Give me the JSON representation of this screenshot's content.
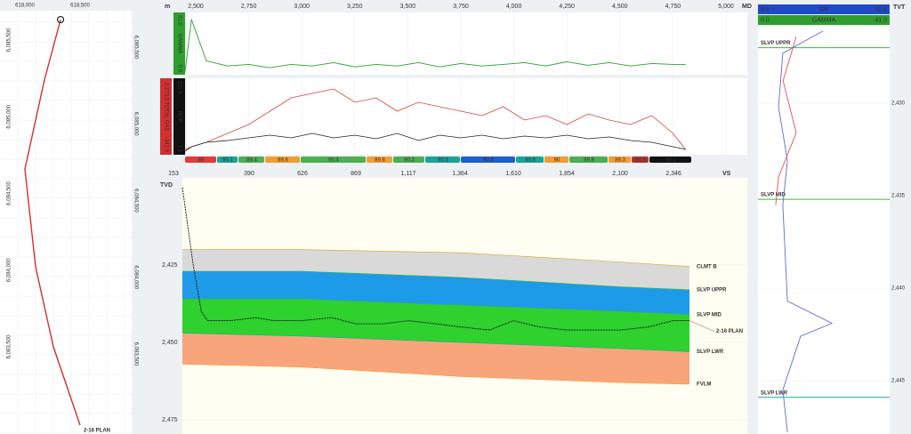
{
  "map": {
    "x_ticks": [
      {
        "value": 618000,
        "label": "618,000"
      },
      {
        "value": 618500,
        "label": "618,500"
      }
    ],
    "y_ticks": [
      {
        "value": 6085500,
        "label": "6,085,500"
      },
      {
        "value": 6085000,
        "label": "6,085,000"
      },
      {
        "value": 6084500,
        "label": "6,084,500"
      },
      {
        "value": 6084000,
        "label": "6,084,000"
      },
      {
        "value": 6083500,
        "label": "6,083,500"
      }
    ],
    "well": {
      "name": "2-16 PLAN",
      "easting": [
        618323,
        618177,
        618000,
        618097,
        618258,
        618500
      ],
      "northing": [
        6085633,
        6085239,
        6084659,
        6084022,
        6083500,
        6082990
      ]
    }
  },
  "md_axis": {
    "unit": "m",
    "name": "MD",
    "ticks": [
      {
        "value": 2500,
        "label": "2,500"
      },
      {
        "value": 2750,
        "label": "2,750"
      },
      {
        "value": 3000,
        "label": "3,000"
      },
      {
        "value": 3250,
        "label": "3,250"
      },
      {
        "value": 3500,
        "label": "3,500"
      },
      {
        "value": 3750,
        "label": "3,750"
      },
      {
        "value": 4000,
        "label": "4,000"
      },
      {
        "value": 4250,
        "label": "4,250"
      },
      {
        "value": 4500,
        "label": "4,500"
      },
      {
        "value": 4750,
        "label": "4,750"
      },
      {
        "value": 5000,
        "label": "5,000"
      }
    ]
  },
  "logs": {
    "md": [
      2450,
      2480,
      2550,
      2650,
      2750,
      2850,
      2950,
      3050,
      3150,
      3250,
      3350,
      3450,
      3550,
      3650,
      3750,
      3850,
      3950,
      4050,
      4150,
      4250,
      4350,
      4450,
      4550,
      4650,
      4750,
      4810
    ],
    "gamma": {
      "name": "GAMMA",
      "max": {
        "value": 41,
        "label": "41.0"
      },
      "min": {
        "value": 0,
        "label": "0.0"
      },
      "color": "#2e9e2e",
      "values": [
        2.3,
        37.5,
        9.4,
        5.9,
        7.0,
        4.7,
        7.0,
        5.9,
        8.2,
        5.3,
        7.0,
        5.9,
        8.2,
        5.3,
        7.6,
        5.9,
        7.0,
        8.2,
        5.9,
        8.8,
        6.4,
        8.2,
        5.9,
        7.6,
        7.0,
        7.0
      ]
    },
    "gas": {
      "name": "TOTAL GAS",
      "top": {
        "value": -2273.5,
        "label": "-2,273.5"
      },
      "bottom": -342.9,
      "color": "#d9413a",
      "values": [
        -436.9,
        -507.9,
        -625.9,
        -860.9,
        -1095.9,
        -1449.9,
        -1802.9,
        -1919.9,
        -2037.9,
        -1684.9,
        -1802.9,
        -1449.9,
        -1684.9,
        -1566.9,
        -1449.9,
        -1331.9,
        -1566.9,
        -1213.9,
        -1331.9,
        -1095.9,
        -1378.9,
        -1213.9,
        -1095.9,
        -1331.9,
        -860.9,
        -436.9
      ]
    },
    "rop": {
      "name": "ROP",
      "top": 211.5,
      "bottom": 7.1,
      "color": "#222",
      "values": [
        12.1,
        24.5,
        37.0,
        42.0,
        49.5,
        56.9,
        49.5,
        61.9,
        49.5,
        56.9,
        47.0,
        61.9,
        42.0,
        56.9,
        49.5,
        56.9,
        47.0,
        54.5,
        49.5,
        56.9,
        47.0,
        52.0,
        42.0,
        37.0,
        24.5,
        17.1
      ]
    }
  },
  "inclinations": [
    {
      "value": 89,
      "color": "#e53935"
    },
    {
      "value": 90.1,
      "color": "#1aa39a"
    },
    {
      "value": 89.4,
      "color": "#4caf50"
    },
    {
      "value": 89.8,
      "color": "#f39c33"
    },
    {
      "value": 90.4,
      "color": "#4caf50"
    },
    {
      "value": 89.6,
      "color": "#f39c33"
    },
    {
      "value": 90.3,
      "color": "#4caf50"
    },
    {
      "value": 90.3,
      "color": "#1aa39a"
    },
    {
      "value": 90.5,
      "color": "#1e5fd1"
    },
    {
      "value": 90.6,
      "color": "#1aa39a"
    },
    {
      "value": 90,
      "color": "#f39c33"
    },
    {
      "value": 89.8,
      "color": "#4caf50"
    },
    {
      "value": 89.3,
      "color": "#f39c33"
    },
    {
      "value": 90.5,
      "color": "#b5332e"
    },
    {
      "value": 90.1,
      "color": "#111111"
    }
  ],
  "vs_axis": {
    "name": "VS",
    "ticks": [
      153,
      390,
      626,
      869,
      {
        "value": 1117,
        "label": "1,117"
      },
      {
        "value": 1364,
        "label": "1,364"
      },
      {
        "value": 1610,
        "label": "1,610"
      },
      {
        "value": 1854,
        "label": "1,854"
      },
      {
        "value": 2100,
        "label": "2,100"
      },
      {
        "value": 2346,
        "label": "2,346"
      }
    ]
  },
  "section": {
    "tvd_label": "TVD",
    "tvd_ticks": [
      {
        "value": 2425,
        "label": "2,425"
      },
      {
        "value": 2450,
        "label": "2,450"
      },
      {
        "value": 2475,
        "label": "2,475"
      }
    ],
    "vs": [
      181,
      626,
      1364,
      2100,
      2420
    ],
    "horizons": [
      {
        "name": "CLMT B",
        "color": "#d6a92b",
        "fill": "#d9d9d9",
        "tvd": [
          2420,
          2420,
          2421,
          2424,
          2425.5
        ]
      },
      {
        "name": "SLVP UPPR",
        "color": "#3cb83c",
        "fill": "#1e9be8",
        "tvd": [
          2427,
          2427,
          2429,
          2432,
          2433
        ]
      },
      {
        "name": "SLVP MID",
        "color": "#3cb83c",
        "fill": "#2ed12e",
        "tvd": [
          2436,
          2436,
          2438,
          2440,
          2441
        ]
      },
      {
        "name": "SLVP LWR",
        "color": "#1aa39a",
        "fill": "#f9a57c",
        "tvd": [
          2447,
          2448,
          2450,
          2452,
          2453
        ]
      },
      {
        "name": "FVLM",
        "color": "#f39c33",
        "tvd": [
          2457,
          2458,
          2461,
          2463,
          2463.5
        ]
      }
    ],
    "plan_label": {
      "name": "2-16 PLAN",
      "color": "#e5504a"
    },
    "well": {
      "vs": [
        181,
        215,
        240,
        260,
        330,
        420,
        500,
        620,
        760,
        870,
        1000,
        1117,
        1250,
        1364,
        1500,
        1610,
        1730,
        1854,
        2000,
        2100,
        2230,
        2346,
        2420
      ],
      "tvd": [
        2400,
        2425,
        2440,
        2443,
        2443,
        2442,
        2443,
        2443,
        2442,
        2444,
        2444,
        2443,
        2444,
        2445,
        2446,
        2443,
        2445,
        2446,
        2446,
        2446,
        2445,
        2443,
        2443
      ]
    }
  },
  "type_log": {
    "gr": {
      "name": "GR",
      "min": 8.6,
      "max": 42.6,
      "color": "#5b6bd6",
      "tvt": [
        2426.1,
        2427.3,
        2430.2,
        2433.1,
        2435.5,
        2440.7,
        2441.9,
        2442.6,
        2445.5,
        2447.8
      ],
      "values": [
        25.4,
        15.0,
        13.9,
        16.2,
        15.0,
        16.2,
        27.7,
        19.6,
        15.0,
        16.2
      ]
    },
    "gamma": {
      "name": "GAMMA",
      "min": {
        "value": 0,
        "label": "0.0"
      },
      "max": {
        "value": 41,
        "label": "41.0"
      },
      "color": "#e5504a",
      "tvt": [
        2426.4,
        2428.8,
        2431.6,
        2434.0,
        2435.5
      ],
      "values": [
        11.9,
        7.8,
        11.9,
        6.4,
        5.5
      ]
    },
    "tvt_label": "TVT",
    "ticks": [
      {
        "value": 2430,
        "label": "2,430"
      },
      {
        "value": 2435,
        "label": "2,435"
      },
      {
        "value": 2440,
        "label": "2,440"
      },
      {
        "value": 2445,
        "label": "2,445"
      }
    ],
    "horizons": [
      {
        "name": "SLVP UPPR",
        "tvt": 2427,
        "color": "#3cb83c"
      },
      {
        "name": "SLVP MID",
        "tvt": 2435.2,
        "color": "#3cb83c"
      },
      {
        "name": "SLVP LWR",
        "tvt": 2445.9,
        "color": "#1aa39a"
      }
    ]
  }
}
